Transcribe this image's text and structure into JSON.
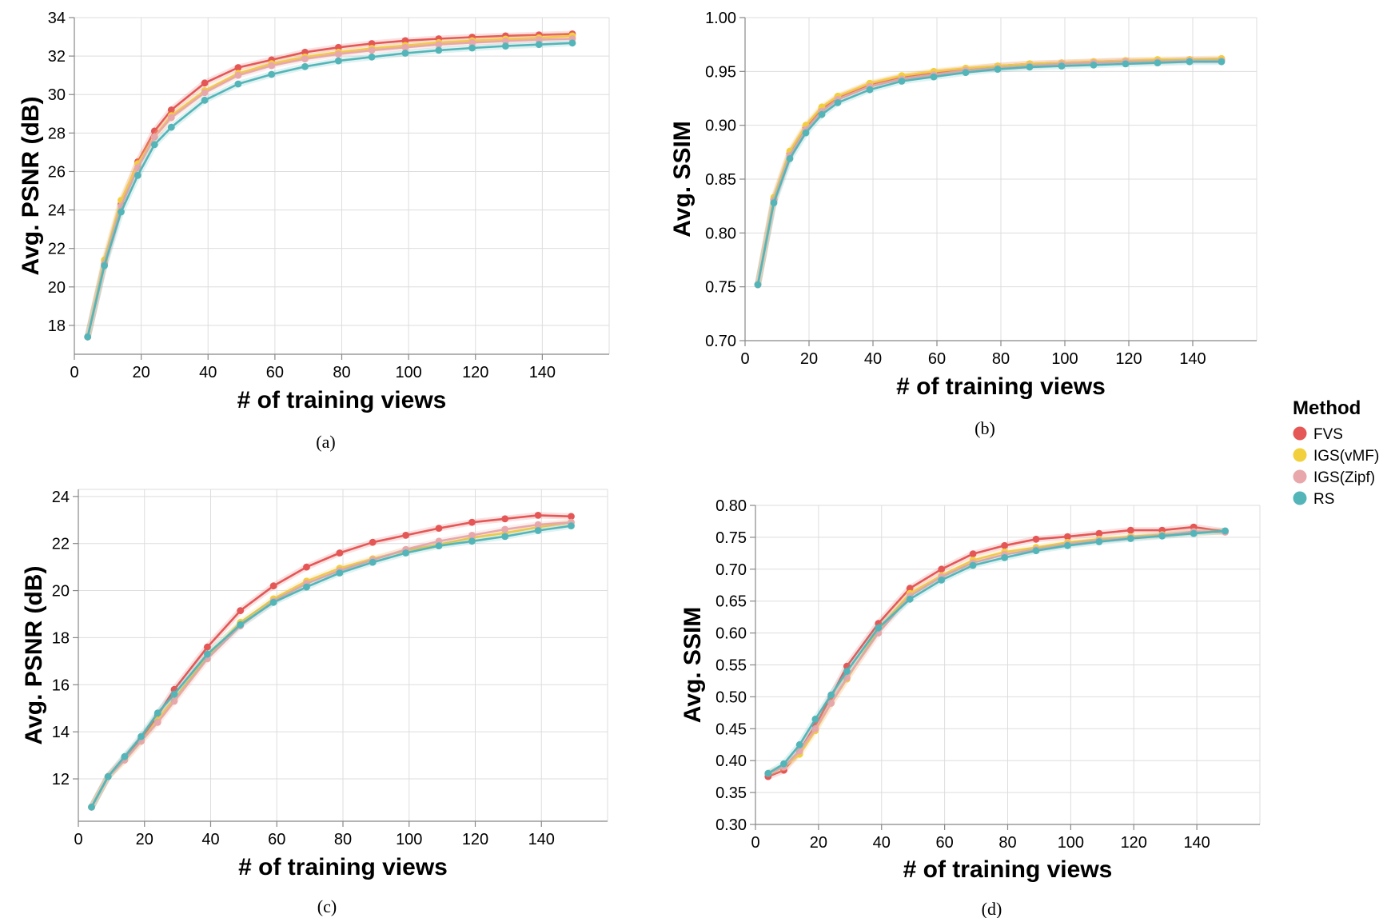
{
  "legend": {
    "title": "Method",
    "entries": [
      {
        "label": "FVS",
        "color": "#e45756"
      },
      {
        "label": "IGS(vMF)",
        "color": "#f2cf3c"
      },
      {
        "label": "IGS(Zipf)",
        "color": "#e8a8ab"
      },
      {
        "label": "RS",
        "color": "#54b5b9"
      }
    ]
  },
  "chart_data": [
    {
      "type": "line",
      "caption": "(a)",
      "xlabel": "# of training views",
      "ylabel": "Avg. PSNR (dB)",
      "xlim": [
        0,
        160
      ],
      "ylim": [
        16.5,
        34
      ],
      "xticks": [
        0,
        20,
        40,
        60,
        80,
        100,
        120,
        140
      ],
      "yticks": [
        18,
        20,
        22,
        24,
        26,
        28,
        30,
        32,
        34
      ],
      "ytick_labels": [
        "18",
        "20",
        "22",
        "24",
        "26",
        "28",
        "30",
        "32",
        "34"
      ],
      "grid": true,
      "x": [
        4,
        9,
        14,
        19,
        24,
        29,
        39,
        49,
        59,
        69,
        79,
        89,
        99,
        109,
        119,
        129,
        139,
        149
      ],
      "series": [
        {
          "name": "FVS",
          "color": "#e45756",
          "values": [
            17.4,
            21.2,
            24.3,
            26.5,
            28.1,
            29.2,
            30.6,
            31.4,
            31.8,
            32.2,
            32.45,
            32.65,
            32.8,
            32.9,
            32.98,
            33.05,
            33.1,
            33.15
          ]
        },
        {
          "name": "IGS(vMF)",
          "color": "#f2cf3c",
          "values": [
            17.4,
            21.4,
            24.5,
            26.4,
            27.8,
            28.9,
            30.2,
            31.1,
            31.6,
            31.95,
            32.2,
            32.4,
            32.55,
            32.7,
            32.8,
            32.88,
            32.95,
            33.05
          ]
        },
        {
          "name": "IGS(Zipf)",
          "color": "#e8a8ab",
          "values": [
            17.4,
            21.2,
            24.2,
            26.2,
            27.8,
            28.8,
            30.1,
            31.0,
            31.5,
            31.85,
            32.1,
            32.3,
            32.45,
            32.6,
            32.7,
            32.78,
            32.85,
            32.9
          ]
        },
        {
          "name": "RS",
          "color": "#54b5b9",
          "values": [
            17.4,
            21.1,
            23.9,
            25.8,
            27.4,
            28.3,
            29.7,
            30.55,
            31.05,
            31.45,
            31.75,
            31.95,
            32.15,
            32.3,
            32.42,
            32.52,
            32.6,
            32.68
          ]
        }
      ]
    },
    {
      "type": "line",
      "caption": "(b)",
      "xlabel": "# of training views",
      "ylabel": "Avg. SSIM",
      "xlim": [
        0,
        160
      ],
      "ylim": [
        0.7,
        1.0
      ],
      "xticks": [
        0,
        20,
        40,
        60,
        80,
        100,
        120,
        140
      ],
      "yticks": [
        0.7,
        0.75,
        0.8,
        0.85,
        0.9,
        0.95,
        1.0
      ],
      "ytick_labels": [
        "0.70",
        "0.75",
        "0.80",
        "0.85",
        "0.90",
        "0.95",
        "1.00"
      ],
      "grid": true,
      "x": [
        4,
        9,
        14,
        19,
        24,
        29,
        39,
        49,
        59,
        69,
        79,
        89,
        99,
        109,
        119,
        129,
        139,
        149
      ],
      "series": [
        {
          "name": "FVS",
          "color": "#e45756",
          "values": [
            0.752,
            0.831,
            0.874,
            0.898,
            0.915,
            0.926,
            0.938,
            0.945,
            0.949,
            0.952,
            0.955,
            0.957,
            0.958,
            0.959,
            0.96,
            0.96,
            0.961,
            0.961
          ]
        },
        {
          "name": "IGS(vMF)",
          "color": "#f2cf3c",
          "values": [
            0.752,
            0.833,
            0.876,
            0.9,
            0.917,
            0.927,
            0.939,
            0.946,
            0.95,
            0.953,
            0.955,
            0.957,
            0.958,
            0.959,
            0.96,
            0.961,
            0.961,
            0.962
          ]
        },
        {
          "name": "IGS(Zipf)",
          "color": "#e8a8ab",
          "values": [
            0.752,
            0.83,
            0.872,
            0.896,
            0.913,
            0.924,
            0.936,
            0.943,
            0.947,
            0.951,
            0.953,
            0.955,
            0.957,
            0.958,
            0.959,
            0.959,
            0.96,
            0.96
          ]
        },
        {
          "name": "RS",
          "color": "#54b5b9",
          "values": [
            0.752,
            0.828,
            0.869,
            0.893,
            0.91,
            0.921,
            0.933,
            0.941,
            0.945,
            0.949,
            0.952,
            0.954,
            0.955,
            0.956,
            0.957,
            0.958,
            0.959,
            0.959
          ]
        }
      ]
    },
    {
      "type": "line",
      "caption": "(c)",
      "xlabel": "# of training views",
      "ylabel": "Avg. PSNR (dB)",
      "xlim": [
        0,
        160
      ],
      "ylim": [
        10.2,
        24.3
      ],
      "xticks": [
        0,
        20,
        40,
        60,
        80,
        100,
        120,
        140
      ],
      "yticks": [
        12,
        14,
        16,
        18,
        20,
        22,
        24
      ],
      "ytick_labels": [
        "12",
        "14",
        "16",
        "18",
        "20",
        "22",
        "24"
      ],
      "grid": true,
      "x": [
        4,
        9,
        14,
        19,
        24,
        29,
        39,
        49,
        59,
        69,
        79,
        89,
        99,
        109,
        119,
        129,
        139,
        149
      ],
      "series": [
        {
          "name": "FVS",
          "color": "#e45756",
          "values": [
            10.8,
            12.1,
            12.9,
            13.7,
            14.7,
            15.8,
            17.6,
            19.15,
            20.2,
            21.0,
            21.6,
            22.05,
            22.35,
            22.65,
            22.9,
            23.05,
            23.2,
            23.15
          ]
        },
        {
          "name": "IGS(vMF)",
          "color": "#f2cf3c",
          "values": [
            10.8,
            12.1,
            12.8,
            13.6,
            14.5,
            15.4,
            17.2,
            18.65,
            19.65,
            20.4,
            20.95,
            21.35,
            21.7,
            21.95,
            22.25,
            22.45,
            22.7,
            22.9
          ]
        },
        {
          "name": "IGS(Zipf)",
          "color": "#e8a8ab",
          "values": [
            10.8,
            12.1,
            12.8,
            13.6,
            14.4,
            15.3,
            17.1,
            18.5,
            19.55,
            20.3,
            20.85,
            21.3,
            21.75,
            22.1,
            22.35,
            22.6,
            22.8,
            22.9
          ]
        },
        {
          "name": "RS",
          "color": "#54b5b9",
          "values": [
            10.8,
            12.1,
            12.95,
            13.8,
            14.8,
            15.6,
            17.3,
            18.55,
            19.5,
            20.15,
            20.75,
            21.2,
            21.6,
            21.9,
            22.1,
            22.3,
            22.55,
            22.75
          ]
        }
      ]
    },
    {
      "type": "line",
      "caption": "(d)",
      "xlabel": "# of training views",
      "ylabel": "Avg. SSIM",
      "xlim": [
        0,
        160
      ],
      "ylim": [
        0.3,
        0.8
      ],
      "xticks": [
        0,
        20,
        40,
        60,
        80,
        100,
        120,
        140
      ],
      "yticks": [
        0.3,
        0.35,
        0.4,
        0.45,
        0.5,
        0.55,
        0.6,
        0.65,
        0.7,
        0.75,
        0.8
      ],
      "ytick_labels": [
        "0.30",
        "0.35",
        "0.40",
        "0.45",
        "0.50",
        "0.55",
        "0.60",
        "0.65",
        "0.70",
        "0.75",
        "0.80"
      ],
      "grid": true,
      "x": [
        4,
        9,
        14,
        19,
        24,
        29,
        39,
        49,
        59,
        69,
        79,
        89,
        99,
        109,
        119,
        129,
        139,
        149
      ],
      "series": [
        {
          "name": "FVS",
          "color": "#e45756",
          "values": [
            0.375,
            0.385,
            0.415,
            0.455,
            0.5,
            0.548,
            0.615,
            0.67,
            0.7,
            0.724,
            0.737,
            0.747,
            0.751,
            0.756,
            0.761,
            0.761,
            0.766,
            0.759
          ]
        },
        {
          "name": "IGS(vMF)",
          "color": "#f2cf3c",
          "values": [
            0.38,
            0.39,
            0.41,
            0.447,
            0.49,
            0.528,
            0.605,
            0.662,
            0.69,
            0.714,
            0.727,
            0.734,
            0.742,
            0.747,
            0.751,
            0.754,
            0.758,
            0.759
          ]
        },
        {
          "name": "IGS(Zipf)",
          "color": "#e8a8ab",
          "values": [
            0.38,
            0.39,
            0.415,
            0.45,
            0.49,
            0.53,
            0.6,
            0.658,
            0.688,
            0.71,
            0.723,
            0.731,
            0.739,
            0.745,
            0.749,
            0.753,
            0.759,
            0.758
          ]
        },
        {
          "name": "RS",
          "color": "#54b5b9",
          "values": [
            0.38,
            0.395,
            0.425,
            0.465,
            0.503,
            0.54,
            0.608,
            0.653,
            0.683,
            0.706,
            0.718,
            0.729,
            0.737,
            0.743,
            0.748,
            0.752,
            0.756,
            0.76
          ]
        }
      ]
    }
  ]
}
